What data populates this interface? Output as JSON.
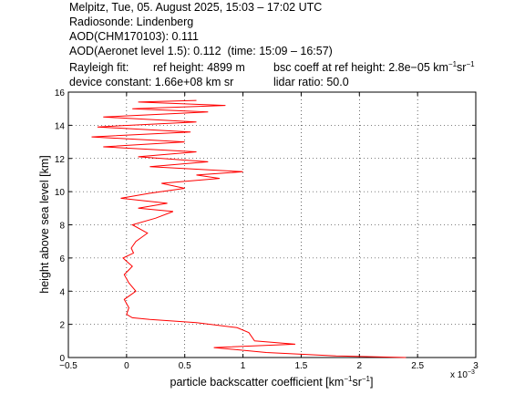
{
  "header": {
    "line1": "Melpitz, Tue, 05. August 2025, 15:03 – 17:02 UTC",
    "line2": "Radiosonde: Lindenberg",
    "line3": "AOD(CHM170103): 0.111",
    "line4a": "AOD(Aeronet level 1.5): 0.112",
    "line4b": "(time: 15:09 – 16:57)",
    "line5a": "Rayleigh fit:",
    "line5b": "ref height: 4899 m",
    "line5c_pre": "bsc coeff at ref height: 2.8e−05 km",
    "line5c_sup1": "−1",
    "line5c_mid": "sr",
    "line5c_sup2": "−1",
    "line6a": "device constant: 1.66e+08 km sr",
    "line6b": "lidar ratio: 50.0"
  },
  "chart_data": {
    "type": "line",
    "xlabel_pre": "particle backscatter coefficient [km",
    "xlabel_sup1": "−1",
    "xlabel_mid": "sr",
    "xlabel_sup2": "−1",
    "xlabel_post": "]",
    "x_exponent": "x 10",
    "x_exponent_sup": "−3",
    "ylabel": "height above sea level [km]",
    "xlim": [
      -0.5,
      3
    ],
    "ylim": [
      0,
      16
    ],
    "xticks": [
      "−0.5",
      "0",
      "0.5",
      "1",
      "1.5",
      "2",
      "2.5",
      "3"
    ],
    "yticks": [
      "0",
      "2",
      "4",
      "6",
      "8",
      "10",
      "12",
      "14",
      "16"
    ],
    "grid": true,
    "line_color": "#ff0000",
    "series": [
      {
        "x": [
          2.4,
          1.8,
          1.2,
          0.75,
          1.45,
          1.1,
          1.05,
          0.95,
          0.6,
          0.2,
          0.05,
          0.0,
          0.02,
          -0.02,
          0.08,
          0.02,
          -0.02,
          0.05,
          0.0,
          -0.03,
          0.06,
          0.04,
          0.08,
          0.18,
          0.05,
          0.25,
          0.4,
          0.1,
          0.35,
          -0.05,
          0.2,
          0.5,
          0.3,
          0.8,
          0.6,
          1.0,
          0.2,
          0.7,
          0.1,
          0.6,
          -0.2,
          0.5,
          -0.3,
          0.55,
          -0.25,
          0.6,
          -0.2,
          0.7,
          0.05,
          0.85,
          0.1,
          0.6
        ],
        "y": [
          0.0,
          0.1,
          0.3,
          0.6,
          0.8,
          1.0,
          1.5,
          1.8,
          2.1,
          2.3,
          2.4,
          2.6,
          3.0,
          3.5,
          4.0,
          4.5,
          5.0,
          5.5,
          5.8,
          6.0,
          6.3,
          6.6,
          7.0,
          7.5,
          8.0,
          8.4,
          8.8,
          9.0,
          9.3,
          9.6,
          9.9,
          10.2,
          10.5,
          10.8,
          11.0,
          11.2,
          11.5,
          11.8,
          12.1,
          12.4,
          12.7,
          13.0,
          13.3,
          13.6,
          13.9,
          14.2,
          14.5,
          14.8,
          15.0,
          15.2,
          15.4,
          15.5
        ]
      }
    ]
  }
}
